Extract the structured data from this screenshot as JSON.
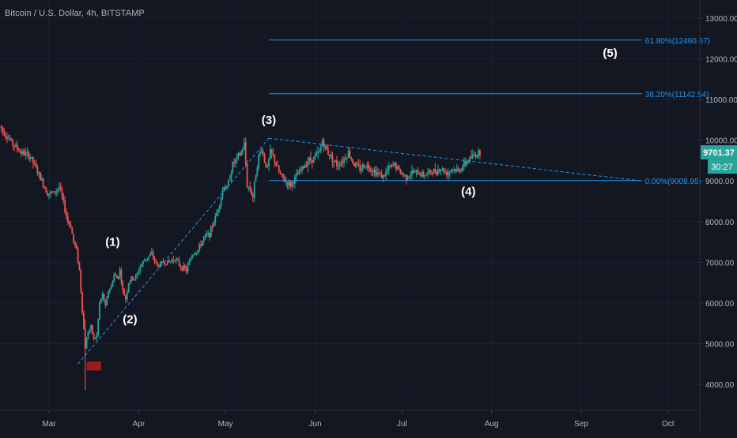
{
  "header": {
    "symbol_title": "Bitcoin / U.S. Dollar, 4h, BITSTAMP"
  },
  "colors": {
    "background": "#131722",
    "grid": "#1c2030",
    "axis_text": "#b2b5be",
    "up_candle": "#26a69a",
    "down_candle": "#ef5350",
    "fib_line": "#2196f3",
    "trend_line": "#2196f3",
    "wave_label": "#ffffff",
    "price_tag_bg": "#26a69a",
    "zone_box": "#b71c1c"
  },
  "chart_data": {
    "type": "candlestick",
    "title": "Bitcoin / U.S. Dollar, 4h, BITSTAMP",
    "ylim": [
      3700,
      13400
    ],
    "y_ticks": [
      4000,
      5000,
      6000,
      7000,
      8000,
      9000,
      10000,
      11000,
      12000,
      13000
    ],
    "y_tick_labels": [
      "4000.00",
      "5000.00",
      "6000.00",
      "7000.00",
      "8000.00",
      "9000.00",
      "10000.00",
      "11000.00",
      "12000.00",
      "13000.00"
    ],
    "x_ticks": [
      "Mar",
      "Apr",
      "May",
      "Jun",
      "Jul",
      "Aug",
      "Sep",
      "Oct"
    ],
    "x_tick_days": [
      0,
      31,
      61,
      92,
      122,
      153,
      184,
      214
    ],
    "last_price": "9701.37",
    "countdown": "30:27",
    "price_path": [
      [
        -17,
        10400
      ],
      [
        -15,
        10200
      ],
      [
        -12,
        9900
      ],
      [
        -9,
        9700
      ],
      [
        -6,
        9600
      ],
      [
        -4,
        9300
      ],
      [
        -2,
        9000
      ],
      [
        0,
        8700
      ],
      [
        2,
        8700
      ],
      [
        4,
        8850
      ],
      [
        5,
        8600
      ],
      [
        6,
        8300
      ],
      [
        7,
        8000
      ],
      [
        8,
        7900
      ],
      [
        9,
        7500
      ],
      [
        10,
        7300
      ],
      [
        11,
        6800
      ],
      [
        12,
        5800
      ],
      [
        13,
        4900
      ],
      [
        14,
        5300
      ],
      [
        15,
        5400
      ],
      [
        16,
        5100
      ],
      [
        17,
        5200
      ],
      [
        18,
        6000
      ],
      [
        19,
        6200
      ],
      [
        20,
        5900
      ],
      [
        21,
        6300
      ],
      [
        22,
        6400
      ],
      [
        23,
        6700
      ],
      [
        24,
        6600
      ],
      [
        25,
        6800
      ],
      [
        26,
        6300
      ],
      [
        27,
        6100
      ],
      [
        28,
        6500
      ],
      [
        29,
        6600
      ],
      [
        30,
        6600
      ],
      [
        31,
        6700
      ],
      [
        32,
        6900
      ],
      [
        34,
        7100
      ],
      [
        36,
        7200
      ],
      [
        38,
        6900
      ],
      [
        40,
        7000
      ],
      [
        42,
        7000
      ],
      [
        44,
        7100
      ],
      [
        46,
        6900
      ],
      [
        48,
        6800
      ],
      [
        50,
        7200
      ],
      [
        52,
        7300
      ],
      [
        54,
        7600
      ],
      [
        56,
        7700
      ],
      [
        58,
        8100
      ],
      [
        60,
        8600
      ],
      [
        61,
        8900
      ],
      [
        62,
        8800
      ],
      [
        63,
        9100
      ],
      [
        64,
        9400
      ],
      [
        65,
        9500
      ],
      [
        66,
        9600
      ],
      [
        67,
        9700
      ],
      [
        68,
        9900
      ],
      [
        69,
        8900
      ],
      [
        70,
        8800
      ],
      [
        71,
        8600
      ],
      [
        72,
        9200
      ],
      [
        73,
        9600
      ],
      [
        74,
        9800
      ],
      [
        75,
        9500
      ],
      [
        76,
        9300
      ],
      [
        77,
        9700
      ],
      [
        78,
        9600
      ],
      [
        80,
        9200
      ],
      [
        82,
        9000
      ],
      [
        84,
        8900
      ],
      [
        86,
        9100
      ],
      [
        88,
        9300
      ],
      [
        90,
        9500
      ],
      [
        92,
        9550
      ],
      [
        94,
        9700
      ],
      [
        95,
        10000
      ],
      [
        96,
        9800
      ],
      [
        98,
        9600
      ],
      [
        100,
        9400
      ],
      [
        102,
        9500
      ],
      [
        104,
        9700
      ],
      [
        106,
        9400
      ],
      [
        108,
        9300
      ],
      [
        110,
        9400
      ],
      [
        112,
        9300
      ],
      [
        114,
        9200
      ],
      [
        116,
        9100
      ],
      [
        118,
        9300
      ],
      [
        120,
        9400
      ],
      [
        122,
        9200
      ],
      [
        124,
        9100
      ],
      [
        126,
        9200
      ],
      [
        128,
        9200
      ],
      [
        130,
        9150
      ],
      [
        132,
        9200
      ],
      [
        134,
        9250
      ],
      [
        136,
        9300
      ],
      [
        138,
        9200
      ],
      [
        140,
        9300
      ],
      [
        142,
        9250
      ],
      [
        144,
        9400
      ],
      [
        146,
        9550
      ],
      [
        148,
        9650
      ],
      [
        149,
        9700
      ]
    ],
    "fibonacci_levels": [
      {
        "label": "61.80%(12460.67)",
        "price": 12460.67
      },
      {
        "label": "38.20%(11142.54)",
        "price": 11142.54
      },
      {
        "label": "0.00%(9008.95)",
        "price": 9008.95
      }
    ],
    "fib_range_days": [
      76,
      205
    ],
    "support_line": {
      "price": 9008.95,
      "from_day": 76,
      "to_day": 205
    },
    "trendlines": [
      {
        "from": [
          10,
          4500
        ],
        "to": [
          76,
          10050
        ]
      },
      {
        "from": [
          76,
          10050
        ],
        "to": [
          205,
          9000
        ]
      }
    ],
    "wave_labels": [
      {
        "label": "(1)",
        "day": 22,
        "price": 7400
      },
      {
        "label": "(2)",
        "day": 28,
        "price": 5500
      },
      {
        "label": "(3)",
        "day": 76,
        "price": 10400
      },
      {
        "label": "(4)",
        "day": 145,
        "price": 8650
      },
      {
        "label": "(5)",
        "day": 194,
        "price": 12050
      }
    ],
    "zone_box": {
      "from_day": 13,
      "to_day": 18,
      "price_low": 4340,
      "price_high": 4560
    }
  }
}
